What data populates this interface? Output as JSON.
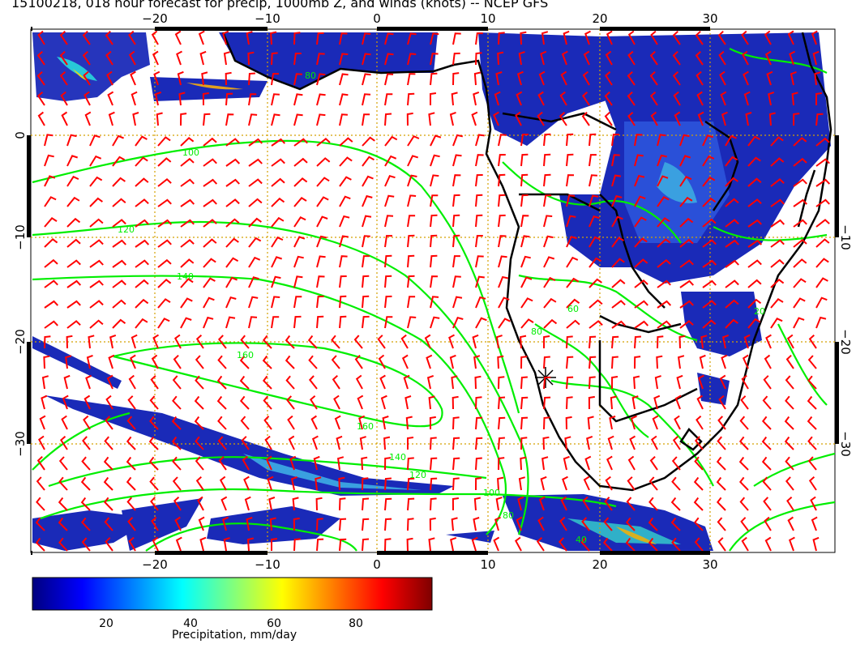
{
  "title": "15100218, 018 hour forecast for precip, 1000mb Z, and winds (knots) -- NCEP GFS",
  "lon_ticks": [
    "−20",
    "−10",
    "0",
    "10",
    "20",
    "30"
  ],
  "lat_ticks": [
    "0",
    "−10",
    "−20",
    "−30"
  ],
  "contour_labels": [
    "80",
    "100",
    "120",
    "140",
    "160",
    "60",
    "40",
    "20"
  ],
  "colorbar": {
    "label": "Precipitation, mm/day",
    "ticks": [
      "20",
      "40",
      "60",
      "80"
    ],
    "colors": [
      "#00007f",
      "#0000ff",
      "#007fff",
      "#00ffff",
      "#7fff7f",
      "#ffff00",
      "#ff7f00",
      "#ff0000",
      "#7f0000"
    ]
  },
  "colors": {
    "wind_barbs": "#ff0000",
    "height_contours": "#00ee00",
    "coastlines": "#000000",
    "grid": "#d4a000"
  }
}
